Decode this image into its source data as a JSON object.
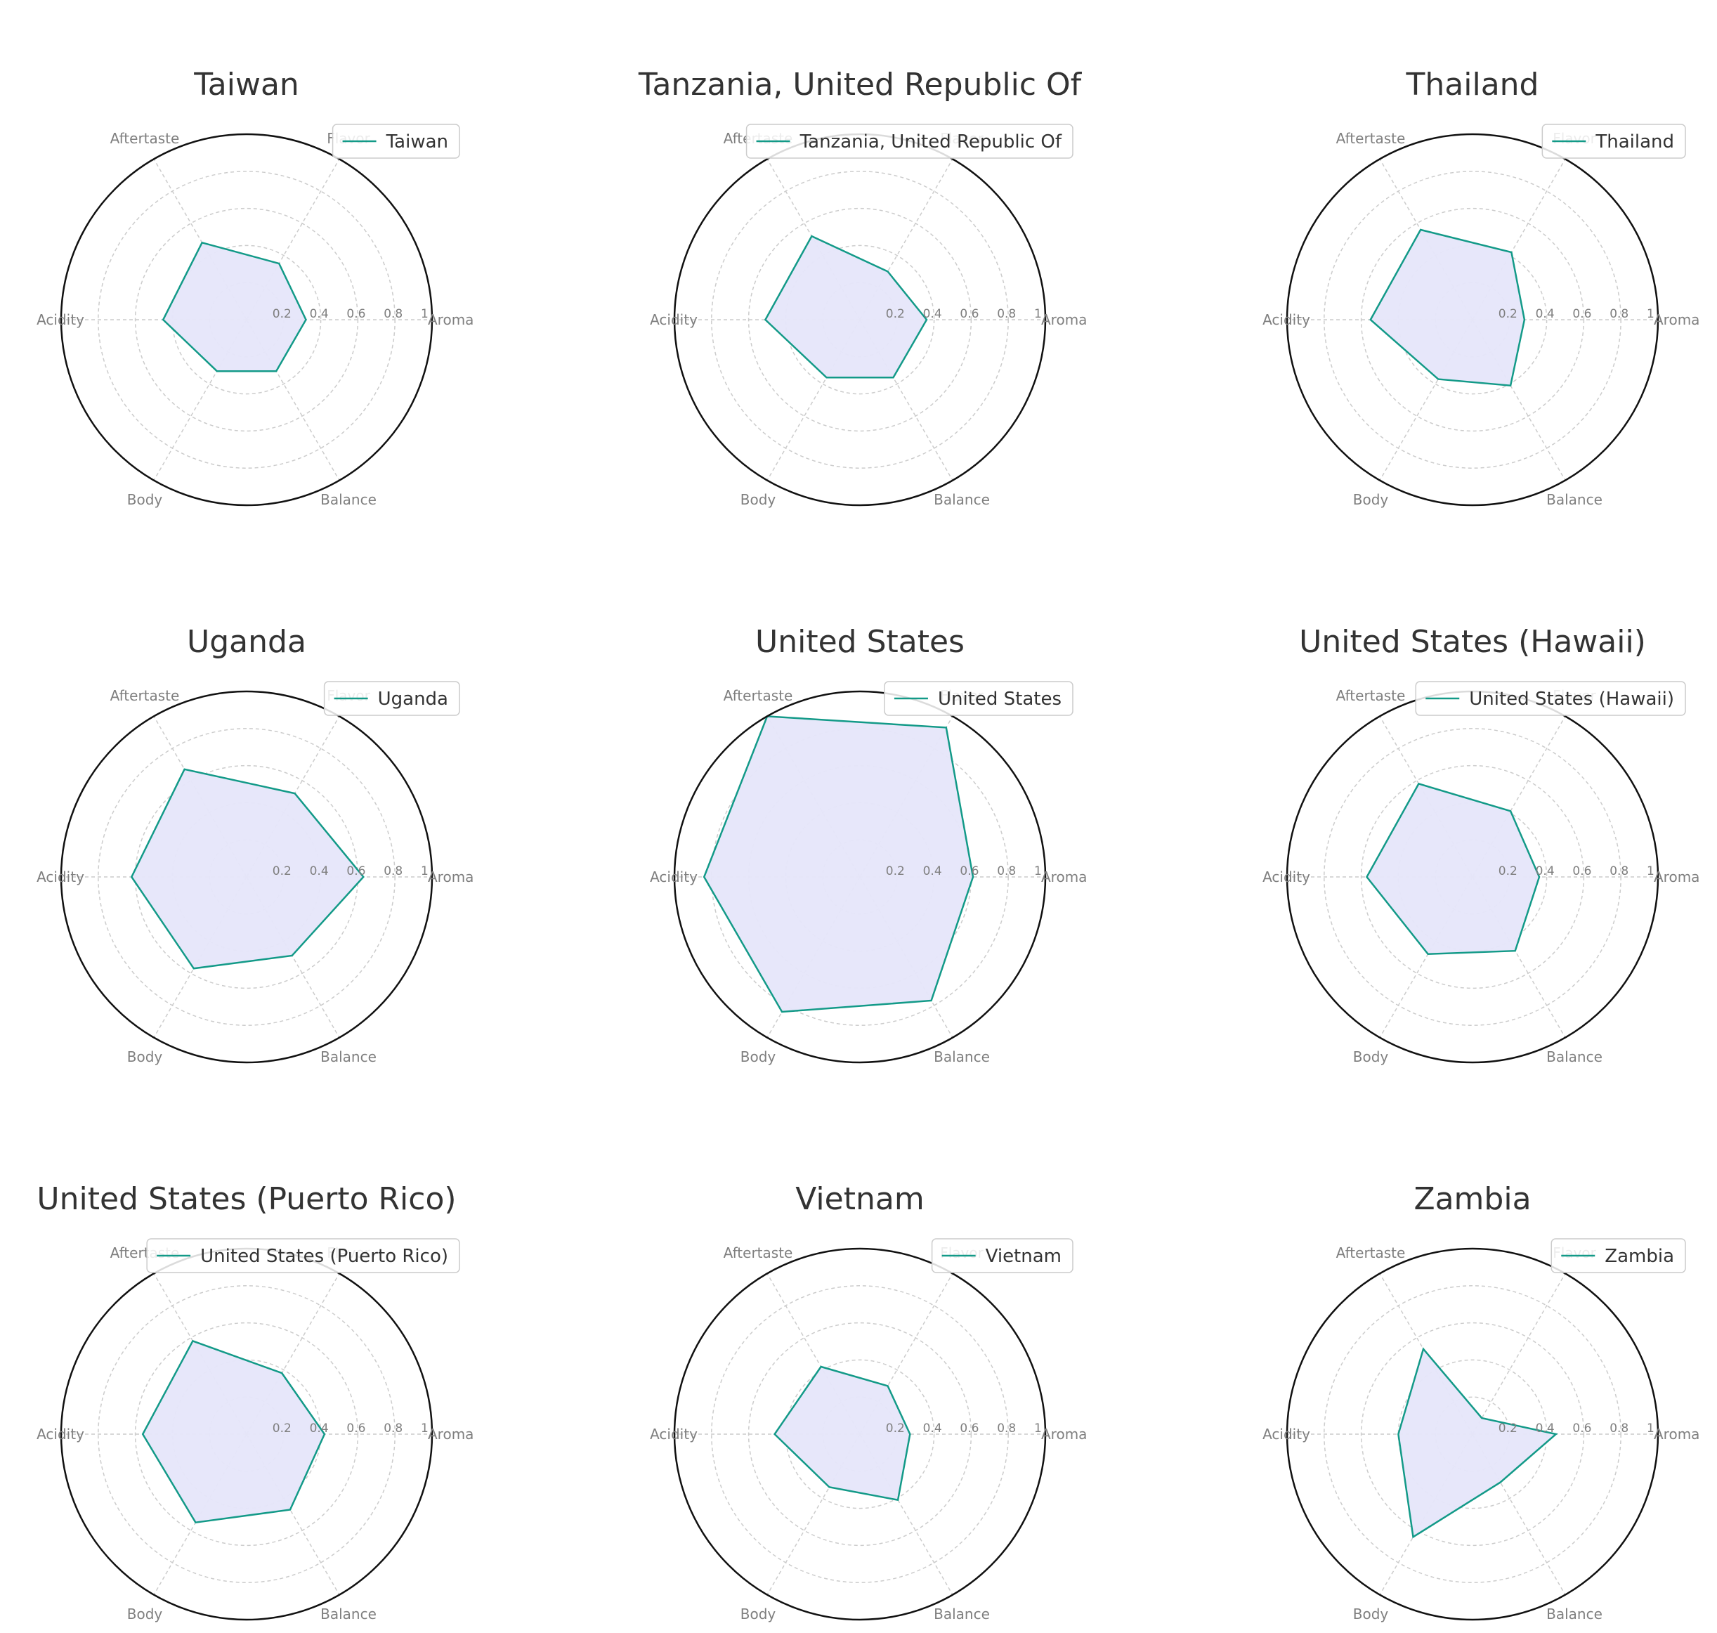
{
  "chart_data": {
    "type": "radar",
    "axes": [
      "Aroma",
      "Flavor",
      "Aftertaste",
      "Acidity",
      "Body",
      "Balance"
    ],
    "rticks": [
      "0.2",
      "0.4",
      "0.6",
      "0.8",
      "1"
    ],
    "rlim": [
      0,
      1
    ],
    "grid": true,
    "colors": {
      "line": "#139a88",
      "fill": "#e6e6fa",
      "outer": "#111111",
      "grid": "#cccccc"
    },
    "panels": [
      {
        "title": "Taiwan",
        "legend": "Taiwan",
        "values": [
          0.32,
          0.35,
          0.48,
          0.45,
          0.32,
          0.32
        ]
      },
      {
        "title": "Tanzania, United Republic Of",
        "legend": "Tanzania, United Republic Of",
        "values": [
          0.36,
          0.3,
          0.52,
          0.51,
          0.36,
          0.36
        ]
      },
      {
        "title": "Thailand",
        "legend": "Thailand",
        "values": [
          0.28,
          0.42,
          0.56,
          0.55,
          0.37,
          0.41
        ]
      },
      {
        "title": "Uganda",
        "legend": "Uganda",
        "values": [
          0.63,
          0.52,
          0.67,
          0.62,
          0.57,
          0.49
        ]
      },
      {
        "title": "United States",
        "legend": "United States",
        "values": [
          0.61,
          0.93,
          1.0,
          0.84,
          0.84,
          0.77
        ]
      },
      {
        "title": "United States (Hawaii)",
        "legend": "United States (Hawaii)",
        "values": [
          0.36,
          0.41,
          0.58,
          0.57,
          0.48,
          0.46
        ]
      },
      {
        "title": "United States (Puerto Rico)",
        "legend": "United States (Puerto Rico)",
        "values": [
          0.42,
          0.38,
          0.58,
          0.56,
          0.55,
          0.47
        ]
      },
      {
        "title": "Vietnam",
        "legend": "Vietnam",
        "values": [
          0.27,
          0.3,
          0.42,
          0.46,
          0.33,
          0.41
        ]
      },
      {
        "title": "Zambia",
        "legend": "Zambia",
        "values": [
          0.45,
          0.1,
          0.53,
          0.4,
          0.64,
          0.3
        ]
      }
    ]
  }
}
